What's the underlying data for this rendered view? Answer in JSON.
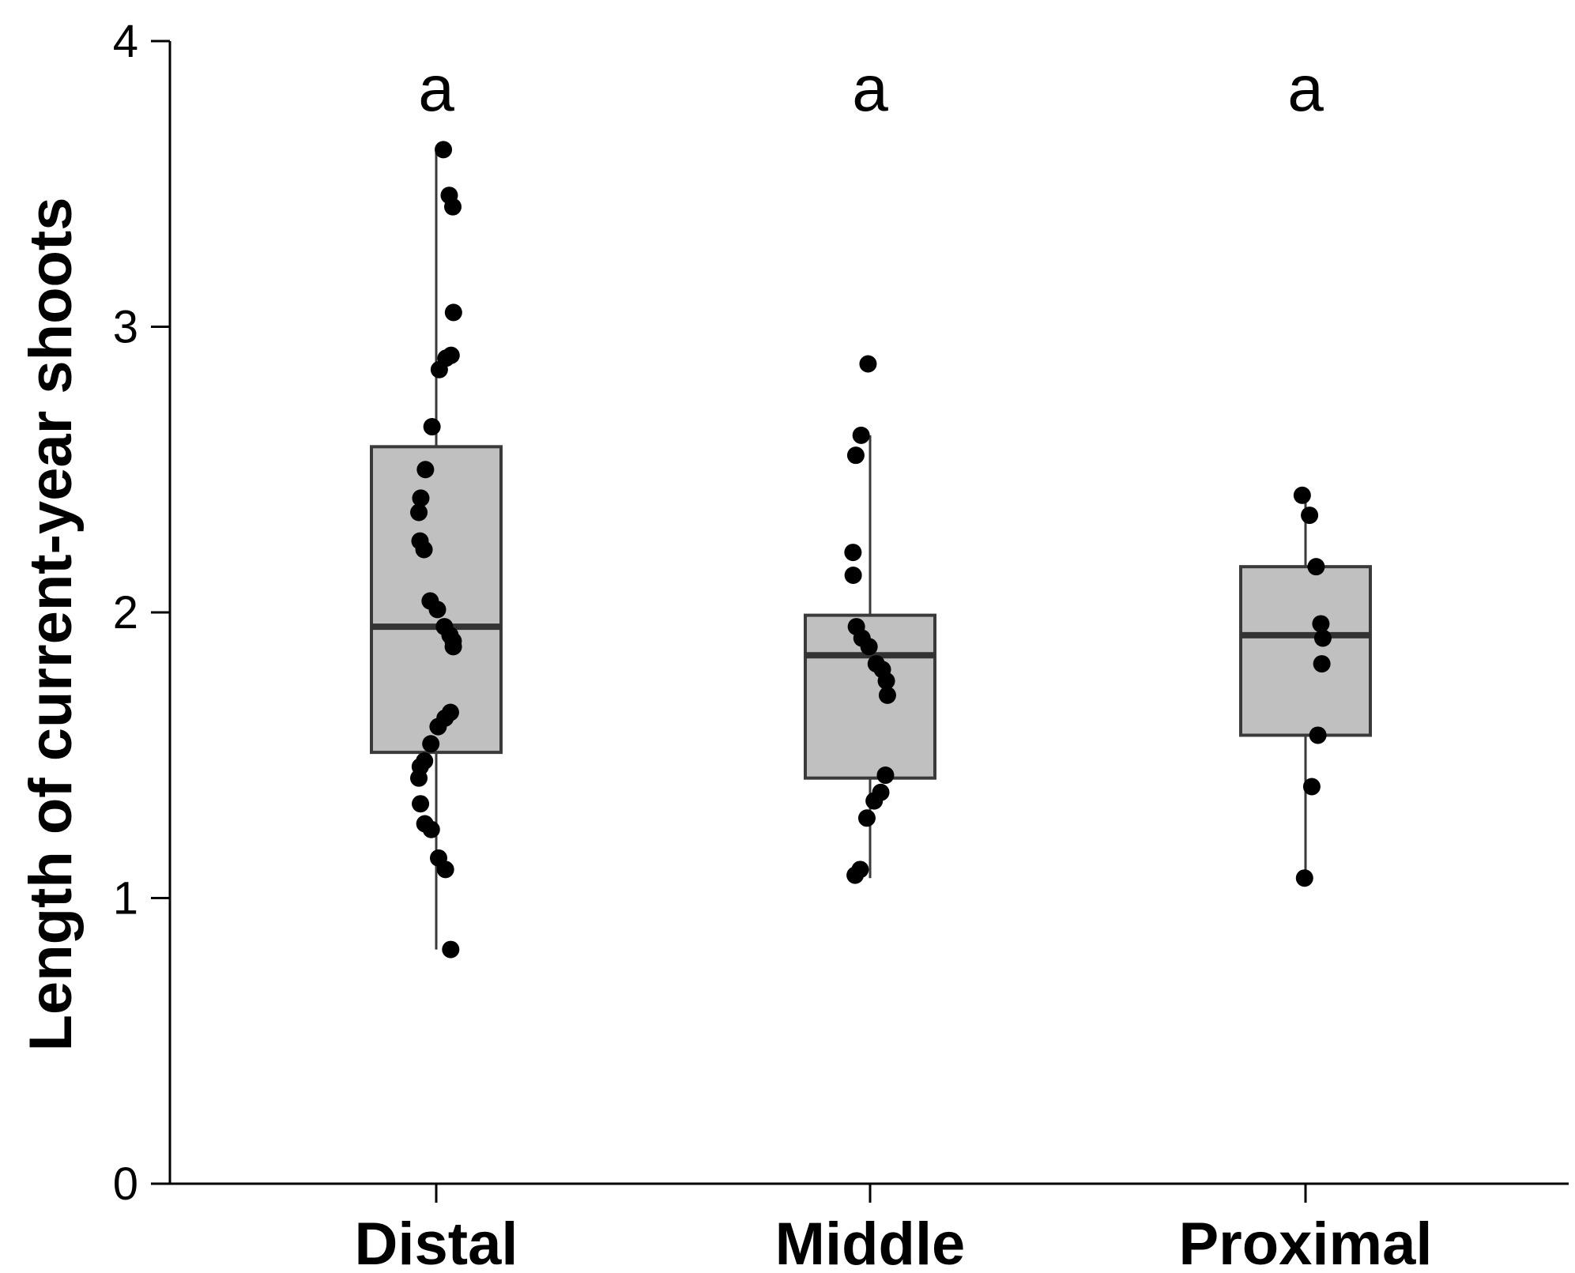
{
  "chart_data": {
    "type": "boxplot",
    "title": "",
    "xlabel": "",
    "ylabel": "Length of current-year shoots",
    "ylim": [
      0,
      4
    ],
    "yticks": [
      "0",
      "1",
      "2",
      "3",
      "4"
    ],
    "categories": [
      "Distal",
      "Middle",
      "Proximal"
    ],
    "significance_letters": [
      "a",
      "a",
      "a"
    ],
    "colors": {
      "box_fill": "#c0c0c0",
      "box_stroke": "#3a3a3a",
      "median": "#333333",
      "point": "#000000",
      "axis": "#000000"
    },
    "groups": [
      {
        "name": "Distal",
        "whisker_low": 0.82,
        "q1": 1.51,
        "median": 1.95,
        "q3": 2.58,
        "whisker_high": 3.62,
        "points": [
          3.62,
          3.46,
          3.42,
          3.05,
          2.9,
          2.89,
          2.85,
          2.65,
          2.5,
          2.4,
          2.35,
          2.25,
          2.22,
          2.04,
          2.01,
          1.95,
          1.92,
          1.9,
          1.88,
          1.65,
          1.63,
          1.6,
          1.54,
          1.48,
          1.46,
          1.42,
          1.33,
          1.26,
          1.24,
          1.14,
          1.1,
          0.82
        ]
      },
      {
        "name": "Middle",
        "whisker_low": 1.07,
        "q1": 1.42,
        "median": 1.85,
        "q3": 1.99,
        "whisker_high": 2.62,
        "points": [
          2.87,
          2.62,
          2.55,
          2.21,
          2.13,
          1.95,
          1.91,
          1.88,
          1.82,
          1.8,
          1.76,
          1.71,
          1.43,
          1.37,
          1.34,
          1.28,
          1.1,
          1.08
        ]
      },
      {
        "name": "Proximal",
        "whisker_low": 1.07,
        "q1": 1.57,
        "median": 1.92,
        "q3": 2.16,
        "whisker_high": 2.41,
        "points": [
          2.41,
          2.34,
          2.16,
          1.96,
          1.91,
          1.82,
          1.57,
          1.39,
          1.07
        ]
      }
    ]
  }
}
